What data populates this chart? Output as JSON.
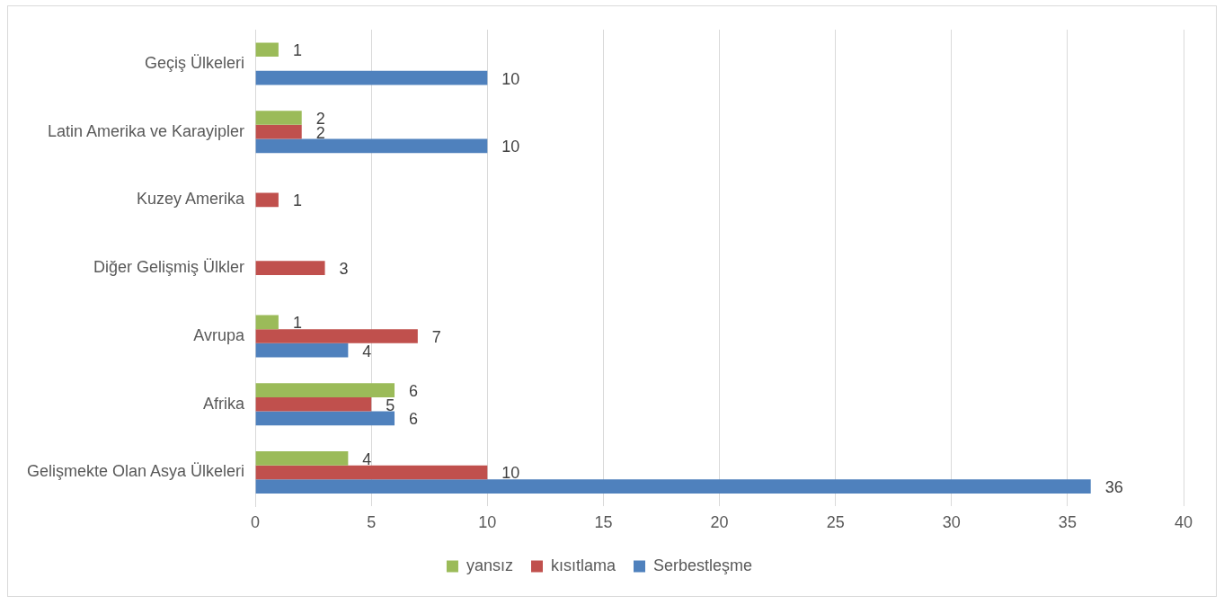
{
  "chart_data": {
    "type": "bar",
    "orientation": "horizontal",
    "categories": [
      "Geçiş Ülkeleri",
      "Latin Amerika ve Karayipler",
      "Kuzey Amerika",
      "Diğer Gelişmiş Ülkler",
      "Avrupa",
      "Afrika",
      "Gelişmekte Olan Asya Ülkeleri"
    ],
    "series": [
      {
        "name": "yansız",
        "color": "#9bbb59",
        "values": [
          1,
          2,
          null,
          null,
          1,
          6,
          4
        ]
      },
      {
        "name": "kısıtlama",
        "color": "#c0504d",
        "values": [
          null,
          2,
          1,
          3,
          7,
          5,
          10
        ]
      },
      {
        "name": "Serbestleşme",
        "color": "#4f81bd",
        "values": [
          10,
          10,
          null,
          null,
          4,
          6,
          36
        ]
      }
    ],
    "xlim": [
      0,
      40
    ],
    "xticks": [
      0,
      5,
      10,
      15,
      20,
      25,
      30,
      35,
      40
    ],
    "grid": "x",
    "legend": "bottom",
    "data_labels": true
  }
}
